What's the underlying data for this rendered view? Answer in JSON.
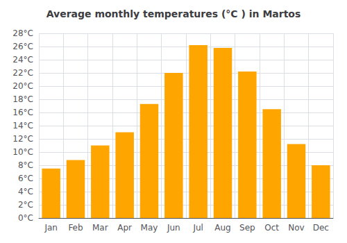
{
  "chart_data": {
    "type": "bar",
    "title": "Average monthly temperatures (°C ) in Martos",
    "categories": [
      "Jan",
      "Feb",
      "Mar",
      "Apr",
      "May",
      "Jun",
      "Jul",
      "Aug",
      "Sep",
      "Oct",
      "Nov",
      "Dec"
    ],
    "values": [
      7.5,
      8.8,
      11.0,
      13.0,
      17.3,
      22.0,
      26.2,
      25.8,
      22.2,
      16.5,
      11.2,
      8.0
    ],
    "color": "#FFA500",
    "ylim": [
      0,
      28
    ],
    "yticks": [
      {
        "value": 0,
        "label": "0°C"
      },
      {
        "value": 2,
        "label": "2°C"
      },
      {
        "value": 4,
        "label": "4°C"
      },
      {
        "value": 6,
        "label": "6°C"
      },
      {
        "value": 8,
        "label": "8°C"
      },
      {
        "value": 10,
        "label": "10°C"
      },
      {
        "value": 12,
        "label": "12°C"
      },
      {
        "value": 14,
        "label": "14°C"
      },
      {
        "value": 16,
        "label": "16°C"
      },
      {
        "value": 18,
        "label": "18°C"
      },
      {
        "value": 20,
        "label": "20°C"
      },
      {
        "value": 22,
        "label": "22°C"
      },
      {
        "value": 24,
        "label": "24°C"
      },
      {
        "value": 26,
        "label": "26°C"
      },
      {
        "value": 28,
        "label": "28°C"
      }
    ],
    "grid": true
  }
}
